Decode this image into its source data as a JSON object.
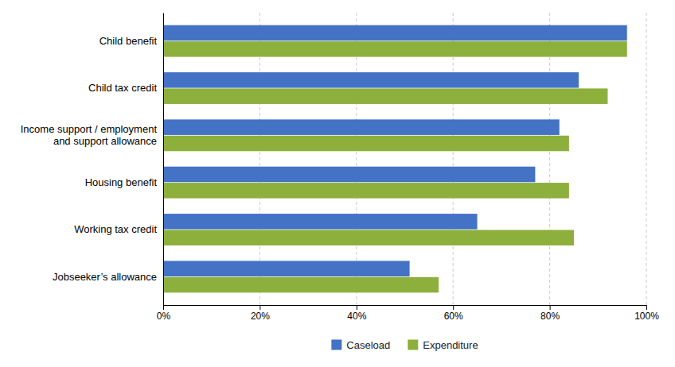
{
  "chart_data": {
    "type": "bar",
    "orientation": "horizontal",
    "categories": [
      "Child benefit",
      "Child tax credit",
      "Income support / employment\nand support allowance",
      "Housing benefit",
      "Working tax credit",
      "Jobseeker’s allowance"
    ],
    "series": [
      {
        "name": "Caseload",
        "color": "#4472C4",
        "values": [
          96,
          86,
          82,
          77,
          65,
          51
        ]
      },
      {
        "name": "Expenditure",
        "color": "#8DAF3B",
        "values": [
          96,
          92,
          84,
          84,
          85,
          57
        ]
      }
    ],
    "xlim": [
      0,
      100
    ],
    "xticks": [
      {
        "value": 0,
        "label": "0%"
      },
      {
        "value": 20,
        "label": "20%"
      },
      {
        "value": 40,
        "label": "40%"
      },
      {
        "value": 60,
        "label": "60%"
      },
      {
        "value": 80,
        "label": "80%"
      },
      {
        "value": 100,
        "label": "100%"
      }
    ],
    "grid": true,
    "legend": "bottom"
  }
}
